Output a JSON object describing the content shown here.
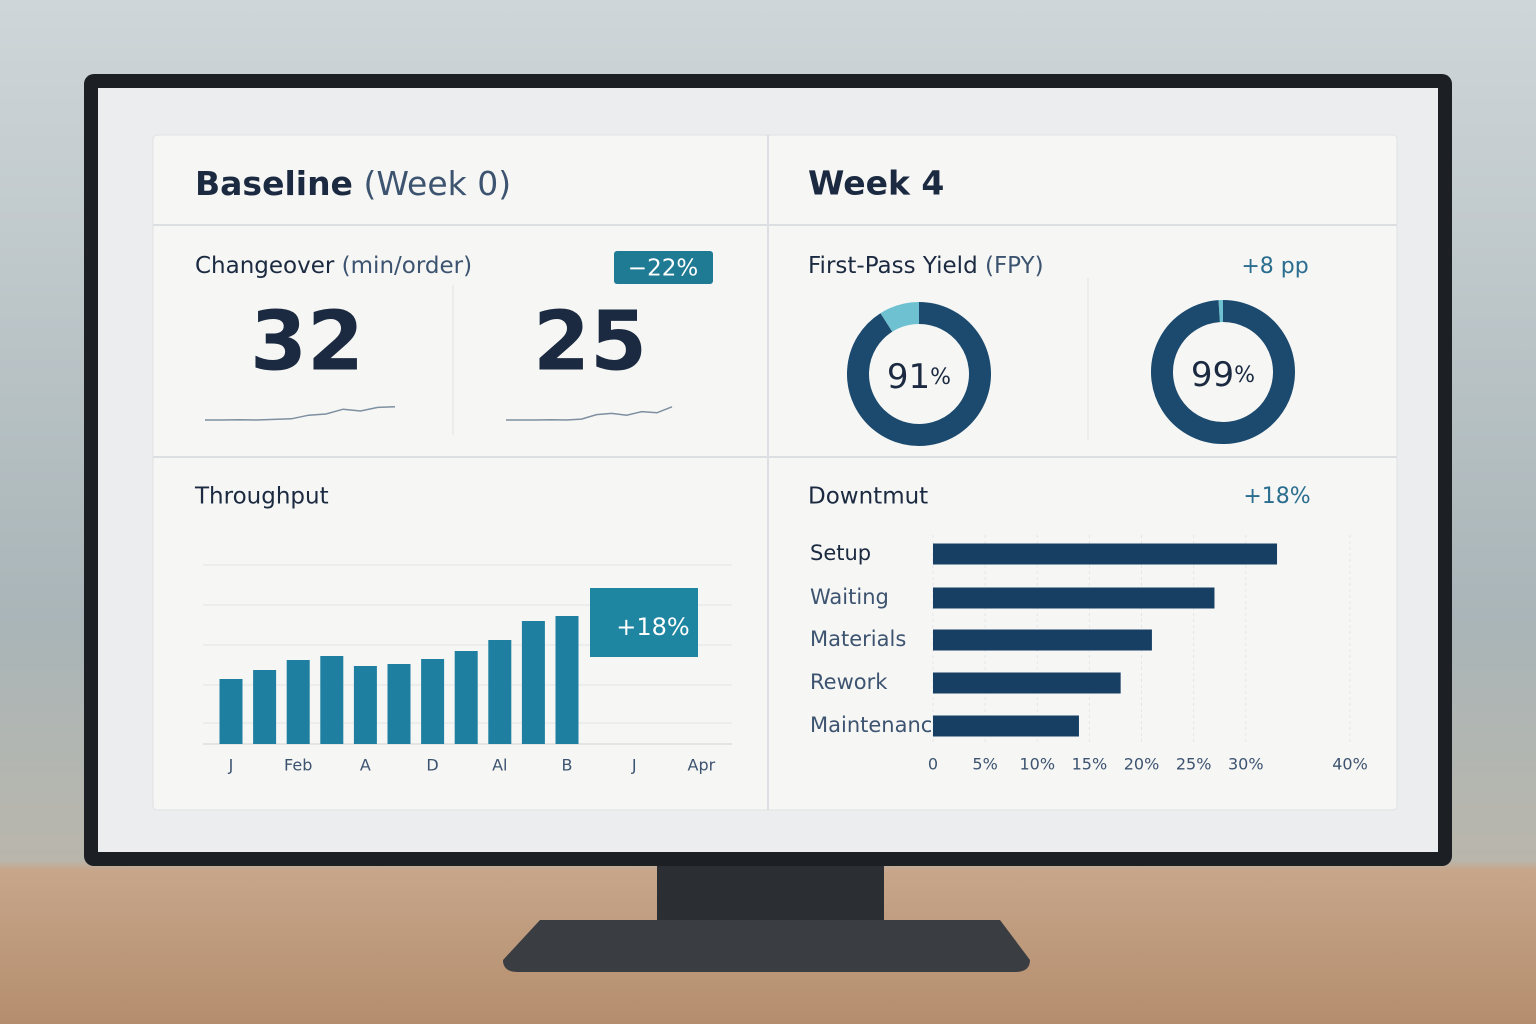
{
  "baseline": {
    "title": "Baseline",
    "subtitle": "(Week 0)"
  },
  "week4": {
    "title": "Week 4"
  },
  "changeover": {
    "title": "Changeover",
    "unit": "(min/order)",
    "badge": "−22%",
    "before": 32,
    "after": 25,
    "spark_ylim": [
      0,
      10
    ],
    "sparkline_before": [
      1,
      1,
      1.1,
      1,
      1.2,
      1.4,
      2.6,
      3,
      4.6,
      4,
      5.2,
      5.4
    ],
    "sparkline_after": [
      1,
      1,
      1,
      1.1,
      1,
      1.3,
      2.8,
      3.2,
      2.6,
      3.8,
      3.4,
      5.4
    ]
  },
  "fpy": {
    "title": "First-Pass Yield",
    "abbr": "(FPY)",
    "delta": "+8 pp",
    "values": [
      91,
      99
    ],
    "unit": "%",
    "colors": [
      "#1b4a6e",
      "#6dc1d0"
    ]
  },
  "throughput": {
    "type": "bar",
    "title": "Throughput",
    "badge": "+18%",
    "categories": [
      "J",
      null,
      "Feb",
      null,
      "A",
      null,
      "D",
      null,
      "Al",
      null,
      "B",
      null,
      "J",
      null,
      "Apr"
    ],
    "values": [
      65,
      74,
      84,
      88,
      78,
      80,
      85,
      93,
      104,
      123,
      128,
      null,
      null,
      null,
      null
    ],
    "ylim": [
      0,
      180
    ],
    "color": "#1e7fa0"
  },
  "downtime": {
    "type": "barh",
    "title": "Downtmut",
    "delta": "+18%",
    "categories": [
      "Setup",
      "Waiting",
      "Materials",
      "Rework",
      "Maintenance"
    ],
    "values": [
      33,
      27,
      21,
      18,
      14
    ],
    "xlim": [
      0,
      40
    ],
    "xticks": [
      0,
      {
        "value": 5,
        "label": "5%"
      },
      {
        "value": 10,
        "label": "10%"
      },
      {
        "value": 15,
        "label": "15%"
      },
      {
        "value": 20,
        "label": "20%"
      },
      {
        "value": 25,
        "label": "25%"
      },
      {
        "value": 30,
        "label": "30%"
      },
      {
        "value": 40,
        "label": "40%"
      }
    ],
    "color": "#163f63"
  }
}
